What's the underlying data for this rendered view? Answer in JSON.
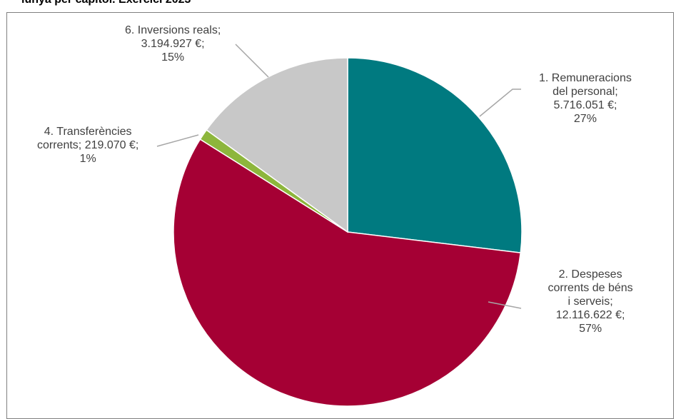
{
  "title": "lunya per capítol. Exercici 2023",
  "chart_data": {
    "type": "pie",
    "slices": [
      {
        "name": "1. Remuneracions del personal",
        "value": 5716051,
        "percent": 27,
        "color": "#007A80",
        "label_lines": [
          "1. Remuneracions",
          "del personal;",
          "5.716.051 €;",
          "27%"
        ]
      },
      {
        "name": "2. Despeses corrents de béns i serveis",
        "value": 12116622,
        "percent": 57,
        "color": "#A50034",
        "label_lines": [
          "2. Despeses",
          "corrents de béns",
          "i serveis;",
          "12.116.622 €;",
          "57%"
        ]
      },
      {
        "name": "4. Transferències corrents",
        "value": 219070,
        "percent": 1,
        "color": "#8DB63C",
        "label_lines": [
          "4. Transferències",
          "corrents; 219.070 €;",
          "1%"
        ]
      },
      {
        "name": "6. Inversions reals",
        "value": 3194927,
        "percent": 15,
        "color": "#C8C8C8",
        "label_lines": [
          "6. Inversions reals;",
          "3.194.927 €;",
          "15%"
        ]
      }
    ],
    "legend": "none",
    "leader_line_color": "#A6A6A6"
  }
}
